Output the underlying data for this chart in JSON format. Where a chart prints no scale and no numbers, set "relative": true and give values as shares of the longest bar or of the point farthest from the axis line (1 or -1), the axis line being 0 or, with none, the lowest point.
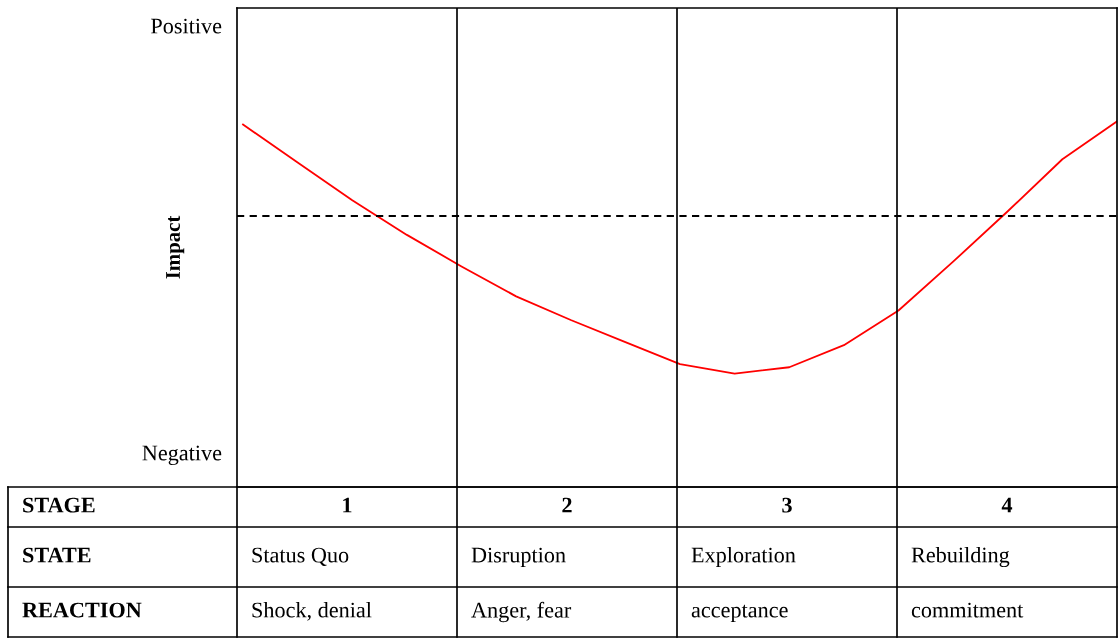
{
  "chart_data": {
    "type": "line",
    "relative": true,
    "ylabel": "Impact",
    "categories": [
      null,
      null,
      null,
      null,
      null,
      null,
      null,
      null,
      null,
      null,
      null,
      null,
      null,
      null,
      null,
      null,
      null
    ],
    "series": [
      {
        "color": "#ff0000",
        "values": [
          0.58,
          0.34,
          0.1,
          -0.12,
          -0.32,
          -0.51,
          -0.66,
          -0.8,
          -0.94,
          -1,
          -0.96,
          -0.82,
          -0.6,
          -0.29,
          0.03,
          0.36,
          0.6
        ]
      }
    ],
    "ref_lines": [
      {
        "axis": "y",
        "value": 0,
        "color": "#000000",
        "line_style": "dashed"
      }
    ],
    "annotations": [
      "Positive",
      "Negative",
      "STAGE",
      "1",
      "2",
      "3",
      "4",
      "STATE",
      "Status Quo",
      "Disruption",
      "Exploration",
      "Rebuilding",
      "REACTION",
      "Shock, denial",
      "Anger, fear",
      "acceptance",
      "commitment"
    ]
  }
}
